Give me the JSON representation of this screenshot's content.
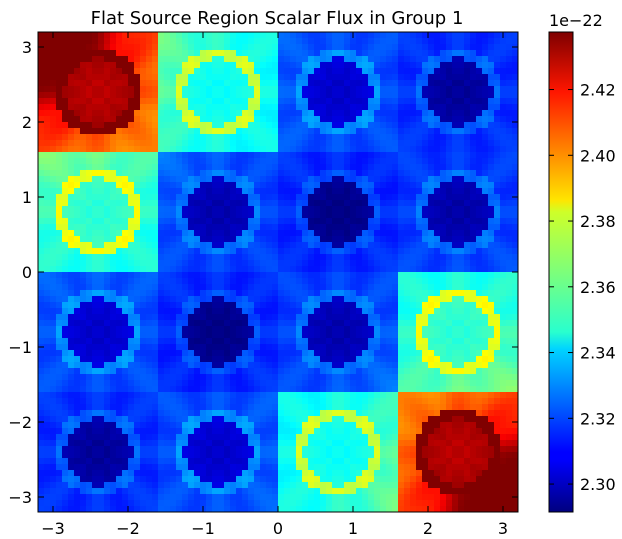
{
  "chart_data": {
    "type": "heatmap",
    "title": "Flat Source Region Scalar Flux in Group 1",
    "xlabel": "",
    "ylabel": "",
    "xlim": [
      -3.2,
      3.2
    ],
    "ylim": [
      -3.2,
      3.2
    ],
    "x_ticks": [
      -3,
      -2,
      -1,
      0,
      1,
      2,
      3
    ],
    "y_ticks": [
      -3,
      -2,
      -1,
      0,
      1,
      2,
      3
    ],
    "x_tick_labels": [
      "−3",
      "−2",
      "−1",
      "0",
      "1",
      "2",
      "3"
    ],
    "y_tick_labels": [
      "−3",
      "−2",
      "−1",
      "0",
      "1",
      "2",
      "3"
    ],
    "colormap": "jet",
    "colorbar": {
      "min": 2.2915,
      "max": 2.4375,
      "ticks": [
        2.3,
        2.32,
        2.34,
        2.36,
        2.38,
        2.4,
        2.42
      ],
      "tick_labels": [
        "2.30",
        "2.32",
        "2.34",
        "2.36",
        "2.38",
        "2.40",
        "2.42"
      ],
      "offset_label": "1e−22"
    },
    "pin_grid": {
      "pitch": 1.6,
      "centers": [
        -2.4,
        -0.8,
        0.8,
        2.4
      ],
      "pin_radius": 0.45,
      "ring_radius": 0.58,
      "values": [
        [
          2.432,
          2.35,
          2.305,
          2.298
        ],
        [
          2.355,
          2.301,
          2.295,
          2.3
        ],
        [
          2.305,
          2.295,
          2.301,
          2.355
        ],
        [
          2.298,
          2.305,
          2.35,
          2.432
        ]
      ]
    },
    "moderator": {
      "base": 2.314,
      "corner_value": 2.436,
      "corner_scale": 0.9
    }
  }
}
